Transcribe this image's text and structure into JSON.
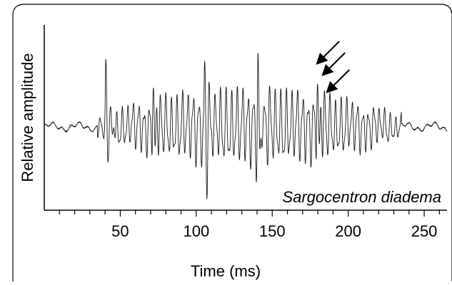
{
  "chart_data": {
    "type": "line",
    "title": "",
    "annotation": "Sargocentron diadema",
    "xlabel": "Time (ms)",
    "ylabel": "Relative amplitude",
    "xlim": [
      0,
      265
    ],
    "ylim": [
      -1,
      1
    ],
    "x_ticks": [
      50,
      100,
      150,
      200,
      250
    ],
    "x_minor_tick_step": 10,
    "grid": false,
    "series": [
      {
        "description": "oscillogram of a sound with five pulses",
        "pulse_times_ms": [
          40,
          71,
          105,
          140,
          179
        ],
        "pulse_peaks": [
          0.68,
          0.73,
          0.69,
          0.75,
          0.8
        ],
        "pulse_troughs": [
          -0.74,
          -0.87,
          -0.87,
          -0.86,
          -0.86
        ],
        "oscillation_start_ms": 35,
        "oscillation_end_ms": 235,
        "color": "#000000"
      }
    ],
    "arrows": {
      "count": 3,
      "points_to_ms": 181,
      "color": "#000000"
    },
    "colors": {
      "frame": "#000000",
      "axis": "#000000",
      "trace": "#1a1a1a",
      "background": "#ffffff"
    }
  }
}
